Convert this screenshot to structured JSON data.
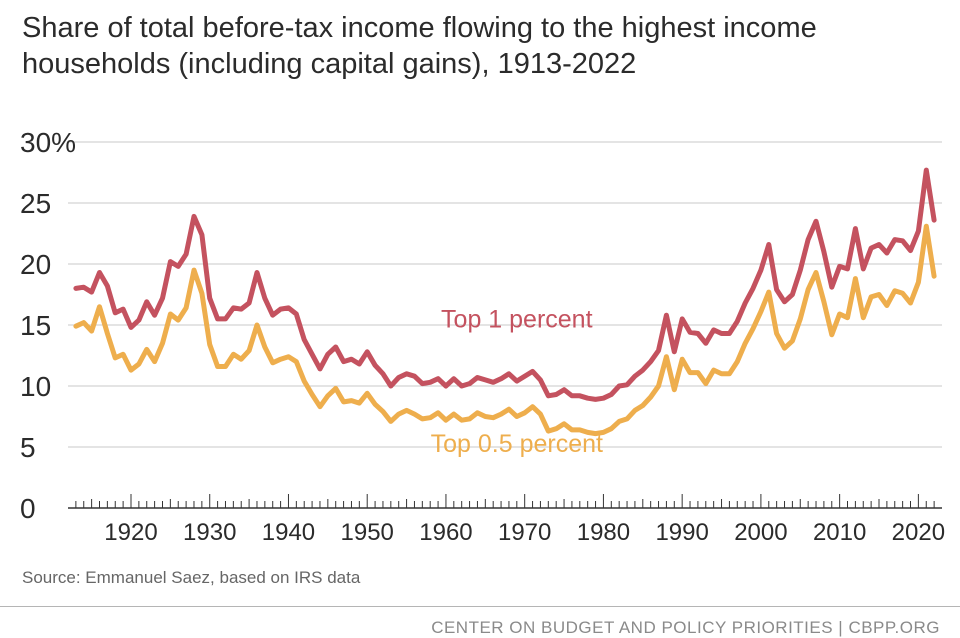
{
  "title_lines": [
    "Share of total before-tax income flowing to the highest income",
    "households (including capital gains), 1913-2022"
  ],
  "source": "Source: Emmanuel Saez, based on IRS data",
  "footer": "CENTER ON BUDGET AND POLICY PRIORITIES | CBPP.ORG",
  "colors": {
    "top1": "#c4525f",
    "top05": "#eeae4d",
    "grid": "#c8c8c8",
    "axis": "#333333",
    "text": "#2b2b2b"
  },
  "chart_data": {
    "type": "line",
    "title": "Share of total before-tax income flowing to the highest income households (including capital gains), 1913-2022",
    "x": [
      1913,
      1914,
      1915,
      1916,
      1917,
      1918,
      1919,
      1920,
      1921,
      1922,
      1923,
      1924,
      1925,
      1926,
      1927,
      1928,
      1929,
      1930,
      1931,
      1932,
      1933,
      1934,
      1935,
      1936,
      1937,
      1938,
      1939,
      1940,
      1941,
      1942,
      1943,
      1944,
      1945,
      1946,
      1947,
      1948,
      1949,
      1950,
      1951,
      1952,
      1953,
      1954,
      1955,
      1956,
      1957,
      1958,
      1959,
      1960,
      1961,
      1962,
      1963,
      1964,
      1965,
      1966,
      1967,
      1968,
      1969,
      1970,
      1971,
      1972,
      1973,
      1974,
      1975,
      1976,
      1977,
      1978,
      1979,
      1980,
      1981,
      1982,
      1983,
      1984,
      1985,
      1986,
      1987,
      1988,
      1989,
      1990,
      1991,
      1992,
      1993,
      1994,
      1995,
      1996,
      1997,
      1998,
      1999,
      2000,
      2001,
      2002,
      2003,
      2004,
      2005,
      2006,
      2007,
      2008,
      2009,
      2010,
      2011,
      2012,
      2013,
      2014,
      2015,
      2016,
      2017,
      2018,
      2019,
      2020,
      2021,
      2022
    ],
    "series": [
      {
        "name": "Top 1 percent",
        "values": [
          18.0,
          18.1,
          17.7,
          19.3,
          18.2,
          16.0,
          16.3,
          14.8,
          15.4,
          16.9,
          15.8,
          17.2,
          20.2,
          19.8,
          20.8,
          23.9,
          22.4,
          17.2,
          15.5,
          15.5,
          16.4,
          16.3,
          16.8,
          19.3,
          17.2,
          15.8,
          16.3,
          16.4,
          15.9,
          13.8,
          12.6,
          11.4,
          12.6,
          13.2,
          12.0,
          12.2,
          11.8,
          12.8,
          11.7,
          11.0,
          10.0,
          10.7,
          11.0,
          10.8,
          10.2,
          10.3,
          10.6,
          10.0,
          10.6,
          10.0,
          10.2,
          10.7,
          10.5,
          10.3,
          10.6,
          11.0,
          10.4,
          10.8,
          11.2,
          10.5,
          9.2,
          9.3,
          9.7,
          9.2,
          9.2,
          9.0,
          8.9,
          9.0,
          9.3,
          10.0,
          10.1,
          10.8,
          11.3,
          12.0,
          12.9,
          15.8,
          12.8,
          15.5,
          14.4,
          14.3,
          13.5,
          14.6,
          14.3,
          14.3,
          15.3,
          16.8,
          18.0,
          19.5,
          21.6,
          17.9,
          16.9,
          17.5,
          19.5,
          22.0,
          23.5,
          21.0,
          18.1,
          19.8,
          19.6,
          22.9,
          19.6,
          21.3,
          21.6,
          20.9,
          22.0,
          21.9,
          21.1,
          22.7,
          27.7,
          23.6
        ]
      },
      {
        "name": "Top 0.5 percent",
        "values": [
          14.9,
          15.2,
          14.5,
          16.5,
          14.3,
          12.3,
          12.6,
          11.3,
          11.8,
          13.0,
          12.0,
          13.5,
          15.9,
          15.4,
          16.4,
          19.5,
          17.6,
          13.4,
          11.6,
          11.6,
          12.6,
          12.2,
          12.9,
          15.0,
          13.2,
          11.9,
          12.2,
          12.4,
          12.0,
          10.4,
          9.3,
          8.3,
          9.2,
          9.8,
          8.7,
          8.8,
          8.6,
          9.4,
          8.5,
          7.9,
          7.1,
          7.7,
          8.0,
          7.7,
          7.3,
          7.4,
          7.8,
          7.2,
          7.7,
          7.2,
          7.3,
          7.8,
          7.5,
          7.4,
          7.7,
          8.1,
          7.5,
          7.8,
          8.3,
          7.7,
          6.3,
          6.5,
          6.9,
          6.4,
          6.4,
          6.2,
          6.1,
          6.2,
          6.5,
          7.1,
          7.3,
          8.0,
          8.4,
          9.1,
          10.0,
          12.4,
          9.7,
          12.2,
          11.1,
          11.1,
          10.2,
          11.3,
          11.0,
          11.0,
          12.0,
          13.5,
          14.7,
          16.1,
          17.7,
          14.3,
          13.1,
          13.7,
          15.5,
          17.9,
          19.3,
          16.9,
          14.2,
          15.9,
          15.6,
          18.8,
          15.6,
          17.3,
          17.5,
          16.6,
          17.8,
          17.6,
          16.8,
          18.5,
          23.1,
          19.0
        ]
      }
    ],
    "y_tick_labels": [
      "0",
      "5",
      "10",
      "15",
      "20",
      "25",
      "30%"
    ],
    "x_tick_labels": [
      "1920",
      "1930",
      "1940",
      "1950",
      "1960",
      "1970",
      "1980",
      "1990",
      "2000",
      "2010",
      "2020"
    ],
    "series_labels": [
      {
        "text": "Top 1 percent",
        "x": 1969,
        "y": 14.8
      },
      {
        "text": "Top 0.5 percent",
        "x": 1969,
        "y": 4.6
      }
    ],
    "xlim": [
      1912,
      2023
    ],
    "ylim": [
      0,
      30
    ],
    "grid": true,
    "legend": "inline labels"
  }
}
